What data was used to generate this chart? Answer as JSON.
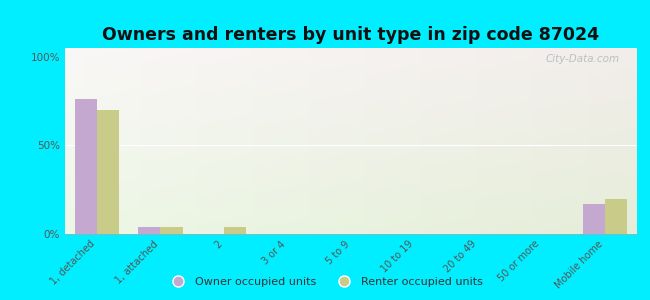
{
  "title": "Owners and renters by unit type in zip code 87024",
  "categories": [
    "1, detached",
    "1, attached",
    "2",
    "3 or 4",
    "5 to 9",
    "10 to 19",
    "20 to 49",
    "50 or more",
    "Mobile home"
  ],
  "owner_values": [
    76,
    4,
    0,
    0,
    0,
    0,
    0,
    0,
    17
  ],
  "renter_values": [
    70,
    4,
    4,
    0,
    0,
    0,
    0,
    0,
    20
  ],
  "owner_color": "#c5a8d0",
  "renter_color": "#c8cc88",
  "outer_bg": "#00eeff",
  "yticks": [
    0,
    50,
    100
  ],
  "ylim": [
    0,
    105
  ],
  "legend_labels": [
    "Owner occupied units",
    "Renter occupied units"
  ],
  "bar_width": 0.35,
  "title_fontsize": 12.5
}
